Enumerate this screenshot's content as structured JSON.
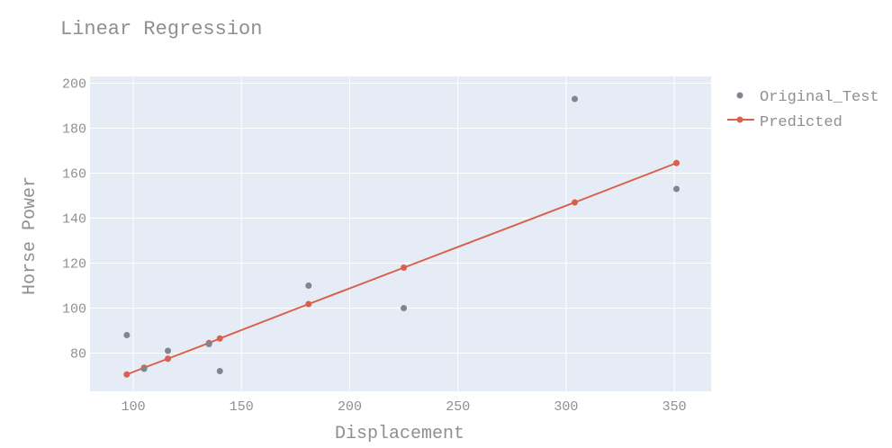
{
  "chart_data": {
    "type": "scatter",
    "title": "Linear Regression",
    "xlabel": "Displacement",
    "ylabel": "Horse Power",
    "xlim": [
      80,
      367
    ],
    "ylim": [
      63,
      203
    ],
    "x_ticks": [
      100,
      150,
      200,
      250,
      300,
      350
    ],
    "y_ticks": [
      80,
      100,
      120,
      140,
      160,
      180,
      200
    ],
    "grid": true,
    "legend_position": "top-right",
    "colors": {
      "plot_bg": "#e5ecf6",
      "grid": "#ffffff",
      "original": "#7f8591",
      "predicted": "#d9604a"
    },
    "series": [
      {
        "name": "Original_Test",
        "mode": "markers",
        "x": [
          97,
          105,
          116,
          135,
          140,
          181,
          225,
          304,
          351
        ],
        "y": [
          88,
          73,
          81,
          84,
          72,
          110,
          100,
          193,
          153
        ]
      },
      {
        "name": "Predicted",
        "mode": "lines+markers",
        "x": [
          97,
          105,
          116,
          135,
          140,
          181,
          225,
          304,
          351
        ],
        "y": [
          70.5,
          73.5,
          77.5,
          84.5,
          86.5,
          101.8,
          118,
          147,
          164.5
        ]
      }
    ]
  }
}
